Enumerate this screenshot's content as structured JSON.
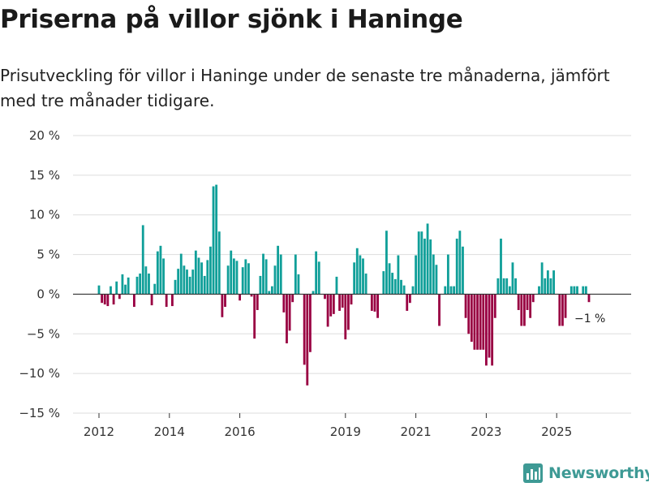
{
  "header": {
    "title": "Priserna på villor sjönk i Haninge",
    "subtitle": "Prisutveckling för villor i Haninge under de senaste tre månaderna, jämfört med tre månader tidigare."
  },
  "brand": {
    "name": "Newsworthy"
  },
  "colors": {
    "positive": "#109f99",
    "negative": "#990042",
    "grid": "#dddddd",
    "baseline": "#333333",
    "brand": "#3e9a95"
  },
  "chart_data": {
    "type": "bar",
    "title": "Priserna på villor sjönk i Haninge",
    "xlabel": "",
    "ylabel": "",
    "ylim": [
      -15,
      20
    ],
    "yticks": [
      20,
      15,
      10,
      5,
      0,
      -5,
      -10,
      -15
    ],
    "ytick_labels": [
      "20 %",
      "15 %",
      "10 %",
      "5 %",
      "0 %",
      "−5 %",
      "−10 %",
      "−15 %"
    ],
    "xticks": [
      2012,
      2014,
      2016,
      2019,
      2021,
      2023,
      2025
    ],
    "xtick_labels": [
      "2012",
      "2014",
      "2016",
      "2019",
      "2021",
      "2023",
      "2025"
    ],
    "start": {
      "year": 2012,
      "month": 1
    },
    "values": [
      1.1,
      -1.1,
      -1.3,
      -1.5,
      1.0,
      -1.3,
      1.6,
      -0.6,
      2.5,
      1.2,
      2.1,
      0.0,
      -1.6,
      2.2,
      2.6,
      8.7,
      3.5,
      2.6,
      -1.4,
      1.3,
      5.4,
      6.1,
      4.5,
      -1.6,
      0.0,
      -1.5,
      1.8,
      3.2,
      5.1,
      3.6,
      3.1,
      2.2,
      3.1,
      5.5,
      4.6,
      4.0,
      2.3,
      4.3,
      6.0,
      13.6,
      13.8,
      7.9,
      -2.9,
      -1.6,
      3.6,
      5.5,
      4.5,
      4.2,
      -0.8,
      3.4,
      4.4,
      3.9,
      -0.3,
      -5.6,
      -2.0,
      2.3,
      5.1,
      4.4,
      0.4,
      1.0,
      3.6,
      6.1,
      5.0,
      -2.3,
      -6.2,
      -4.6,
      -1.0,
      5.0,
      2.5,
      0.0,
      -8.9,
      -11.5,
      -7.3,
      0.4,
      5.4,
      4.1,
      0.0,
      -0.6,
      -4.1,
      -2.8,
      -2.5,
      2.2,
      -2.1,
      -1.7,
      -5.7,
      -4.5,
      -1.3,
      4.0,
      5.8,
      4.9,
      4.5,
      2.6,
      0.0,
      -2.1,
      -2.2,
      -3.0,
      0.0,
      2.9,
      8.0,
      3.9,
      2.7,
      1.9,
      4.9,
      1.8,
      1.1,
      -2.1,
      -1.1,
      1.0,
      4.9,
      7.9,
      7.9,
      7.0,
      8.9,
      6.9,
      5.0,
      3.7,
      -4.0,
      0.0,
      1.0,
      5.0,
      1.0,
      1.0,
      7.0,
      8.0,
      6.0,
      -3.0,
      -5.0,
      -6.0,
      -7.0,
      -7.0,
      -7.0,
      -7.0,
      -9.0,
      -8.0,
      -9.0,
      -3.0,
      2.0,
      7.0,
      2.0,
      2.0,
      1.0,
      4.0,
      2.0,
      -2.0,
      -4.0,
      -4.0,
      -2.0,
      -3.0,
      -1.0,
      0.0,
      1.0,
      4.0,
      2.0,
      3.0,
      2.0,
      3.0,
      0.0,
      -4.0,
      -4.0,
      -3.0,
      0.0,
      1.0,
      1.0,
      1.0,
      0.0,
      1.0,
      1.0,
      -1.0
    ],
    "annotation": {
      "label": "−1 %",
      "value": -1
    }
  }
}
